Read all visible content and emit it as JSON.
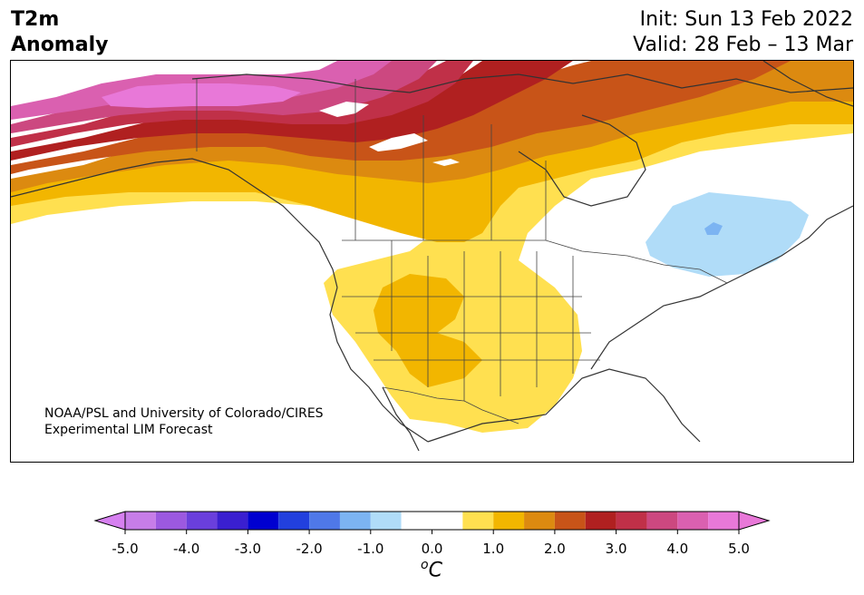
{
  "header": {
    "title_line1": "T2m",
    "title_line2": "Anomaly",
    "init": "Init: Sun 13 Feb 2022",
    "valid": "Valid: 28 Feb – 13 Mar"
  },
  "map": {
    "credit_line1": "NOAA/PSL and University of Colorado/CIRES",
    "credit_line2": "Experimental LIM Forecast",
    "region": "North America",
    "variable": "2m temperature anomaly"
  },
  "colorbar": {
    "unit": "°C",
    "unit_display": "oC",
    "ticks": [
      "-5.0",
      "-4.0",
      "-3.0",
      "-2.0",
      "-1.0",
      "0.0",
      "1.0",
      "2.0",
      "3.0",
      "4.0",
      "5.0"
    ],
    "levels": [
      -5.0,
      -4.5,
      -4.0,
      -3.5,
      -3.0,
      -2.5,
      -2.0,
      -1.5,
      -1.0,
      -0.5,
      0.5,
      1.0,
      1.5,
      2.0,
      2.5,
      3.0,
      3.5,
      4.0,
      4.5,
      5.0
    ],
    "colors": [
      "#c77de8",
      "#9c59e0",
      "#6a3fdc",
      "#3a1fd0",
      "#0000d0",
      "#2240de",
      "#4f78e8",
      "#7cb4f2",
      "#b0dcf8",
      "#ffffff",
      "#ffe050",
      "#f2b600",
      "#dc8a10",
      "#c85418",
      "#b02020",
      "#c03048",
      "#cc4880",
      "#da60b0",
      "#e878d8"
    ],
    "extend_min_color": "#d680f0",
    "extend_max_color": "#e878d8"
  }
}
